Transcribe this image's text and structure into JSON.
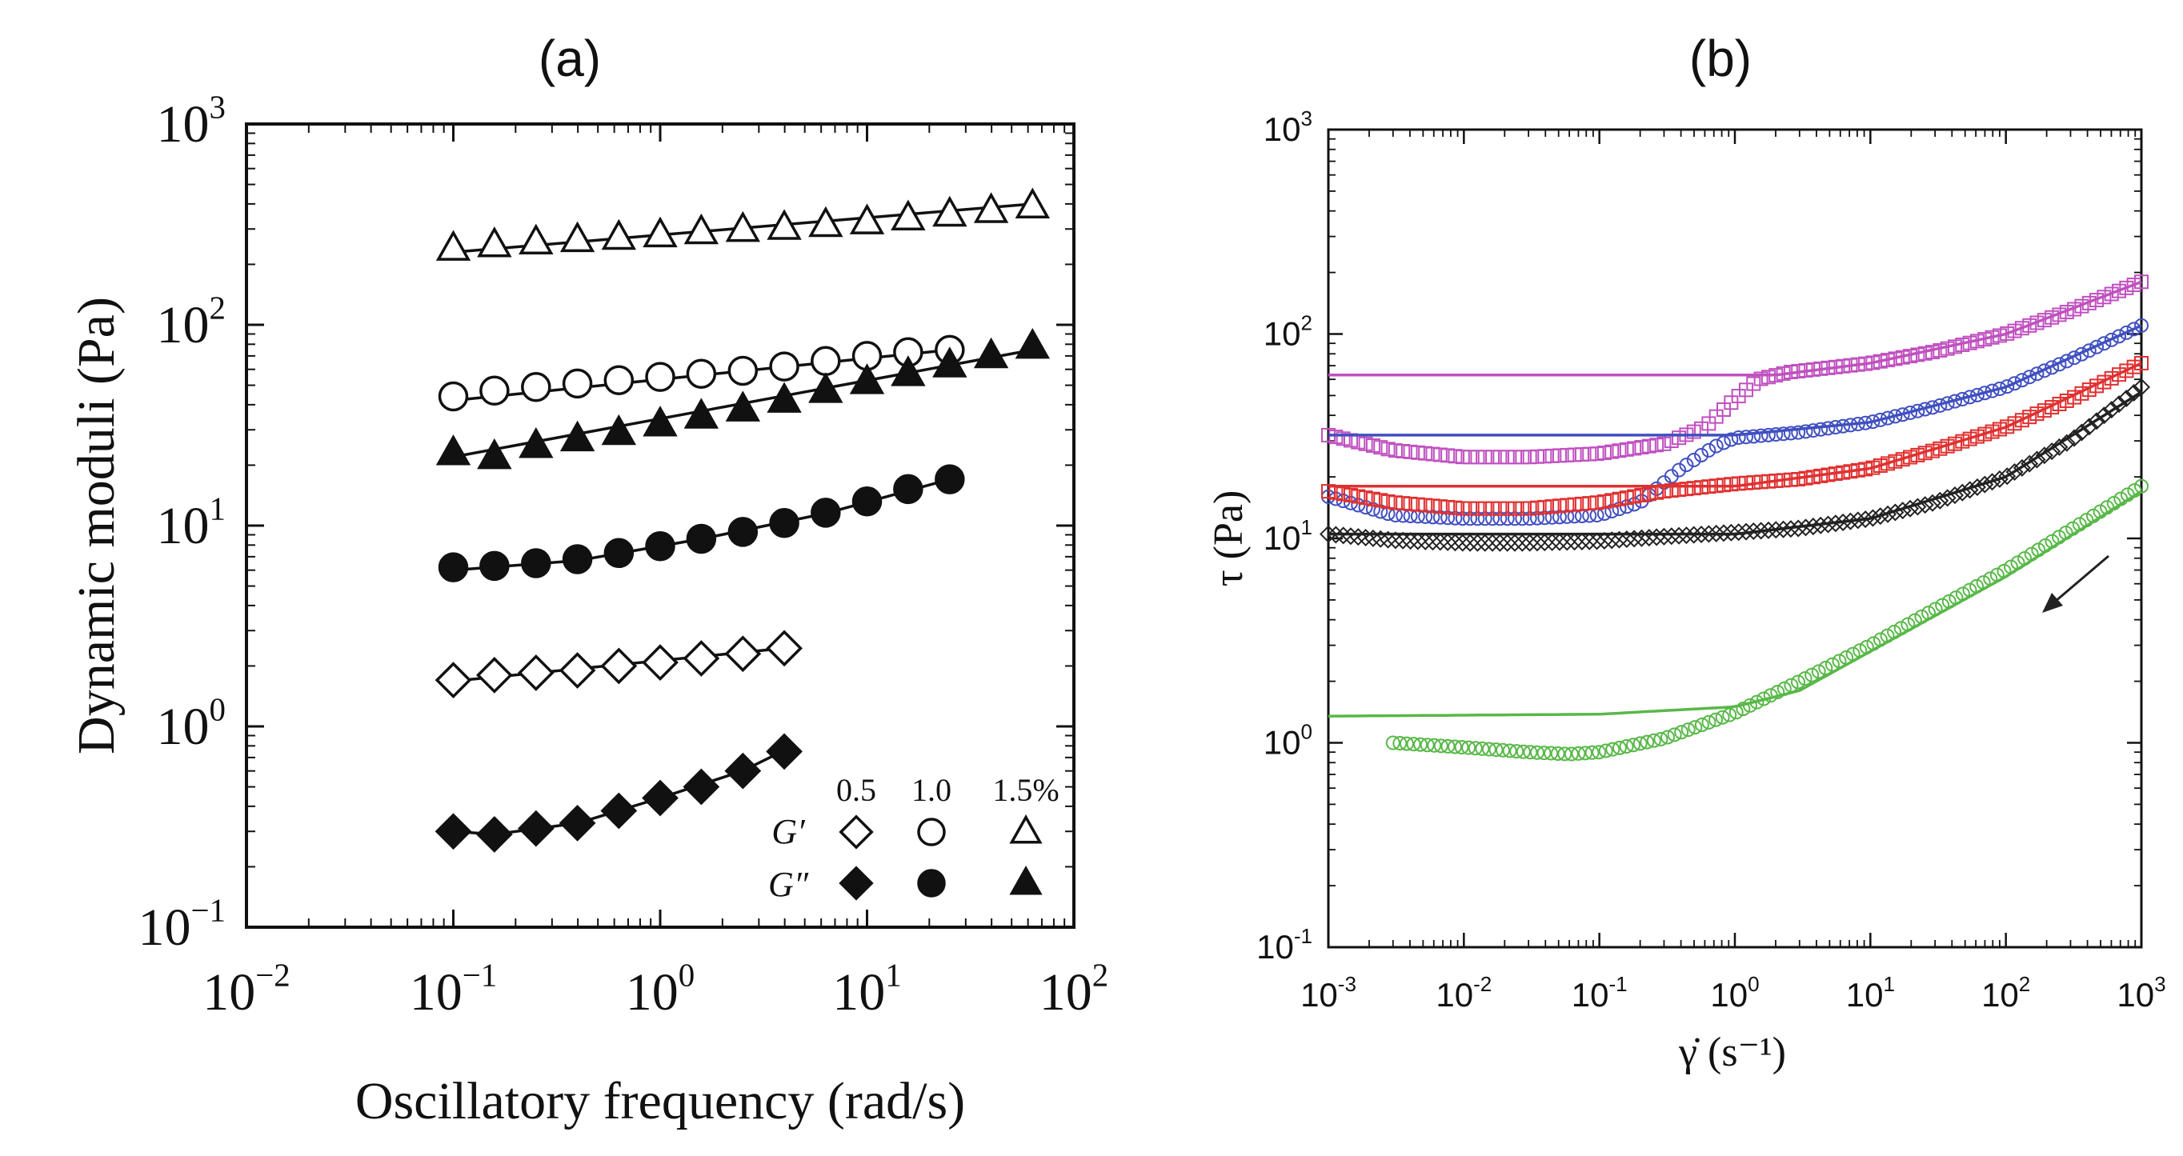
{
  "chart_data": [
    {
      "type": "scatter",
      "panel_label": "(a)",
      "title": "",
      "xlabel": "Oscillatory frequency (rad/s)",
      "ylabel": "Dynamic moduli (Pa)",
      "xscale": "log",
      "yscale": "log",
      "xlim": [
        0.01,
        100
      ],
      "ylim": [
        0.1,
        1000
      ],
      "x_ticks": [
        {
          "mantissa": "10",
          "exp": "−2"
        },
        {
          "mantissa": "10",
          "exp": "−1"
        },
        {
          "mantissa": "10",
          "exp": "0"
        },
        {
          "mantissa": "10",
          "exp": "1"
        },
        {
          "mantissa": "10",
          "exp": "2"
        }
      ],
      "y_ticks": [
        {
          "mantissa": "10",
          "exp": "−1"
        },
        {
          "mantissa": "10",
          "exp": "0"
        },
        {
          "mantissa": "10",
          "exp": "1"
        },
        {
          "mantissa": "10",
          "exp": "2"
        },
        {
          "mantissa": "10",
          "exp": "3"
        }
      ],
      "legend": {
        "position": "bottom-right",
        "header": [
          "0.5",
          "1.0",
          "1.5%"
        ],
        "rows": [
          {
            "label": "G′",
            "filled": false
          },
          {
            "label": "G″",
            "filled": true
          }
        ]
      },
      "series": [
        {
          "name": "G′ 1.5%",
          "marker": "triangle",
          "filled": false,
          "x": [
            0.1,
            0.158,
            0.251,
            0.398,
            0.631,
            1.0,
            1.58,
            2.51,
            3.98,
            6.31,
            10.0,
            15.8,
            25.1,
            39.8,
            63.1
          ],
          "y": [
            240,
            250,
            258,
            265,
            272,
            280,
            290,
            298,
            305,
            315,
            325,
            340,
            355,
            370,
            390
          ],
          "fit": [
            [
              0.1,
              230
            ],
            [
              63.1,
              400
            ]
          ]
        },
        {
          "name": "G′ 1.0%",
          "marker": "circle",
          "filled": false,
          "x": [
            0.1,
            0.158,
            0.251,
            0.398,
            0.631,
            1.0,
            1.58,
            2.51,
            3.98,
            6.31,
            10.0,
            15.8,
            25.1
          ],
          "y": [
            44,
            47,
            49,
            51,
            53,
            55,
            57,
            59,
            62,
            66,
            70,
            73,
            75
          ],
          "fit": [
            [
              0.1,
              42
            ],
            [
              25.1,
              75
            ]
          ]
        },
        {
          "name": "G″ 1.5%",
          "marker": "triangle",
          "filled": true,
          "x": [
            0.1,
            0.158,
            0.251,
            0.398,
            0.631,
            1.0,
            1.58,
            2.51,
            3.98,
            6.31,
            10.0,
            15.8,
            25.1,
            39.8,
            63.1
          ],
          "y": [
            23,
            22,
            25,
            27,
            29,
            32,
            35,
            38,
            42,
            47,
            52,
            57,
            63,
            70,
            78
          ],
          "fit": [
            [
              0.1,
              22
            ],
            [
              63.1,
              75
            ]
          ]
        },
        {
          "name": "G″ 1.0%",
          "marker": "circle",
          "filled": true,
          "x": [
            0.1,
            0.158,
            0.251,
            0.398,
            0.631,
            1.0,
            1.58,
            2.51,
            3.98,
            6.31,
            10.0,
            15.8,
            25.1
          ],
          "y": [
            6.2,
            6.3,
            6.5,
            6.8,
            7.3,
            7.9,
            8.6,
            9.3,
            10.3,
            11.6,
            13.2,
            15.2,
            17
          ],
          "fit": [
            [
              0.1,
              6.0
            ],
            [
              0.4,
              6.7
            ],
            [
              1.6,
              8.6
            ],
            [
              6.3,
              11.5
            ],
            [
              25.1,
              17
            ]
          ]
        },
        {
          "name": "G′ 0.5%",
          "marker": "diamond",
          "filled": false,
          "x": [
            0.1,
            0.158,
            0.251,
            0.398,
            0.631,
            1.0,
            1.58,
            2.51,
            3.98
          ],
          "y": [
            1.7,
            1.8,
            1.85,
            1.9,
            2.0,
            2.08,
            2.18,
            2.3,
            2.45
          ],
          "fit": [
            [
              0.1,
              1.68
            ],
            [
              3.98,
              2.45
            ]
          ]
        },
        {
          "name": "G″ 0.5%",
          "marker": "diamond",
          "filled": true,
          "x": [
            0.1,
            0.158,
            0.251,
            0.398,
            0.631,
            1.0,
            1.58,
            2.51,
            3.98
          ],
          "y": [
            0.3,
            0.29,
            0.31,
            0.33,
            0.38,
            0.44,
            0.5,
            0.6,
            0.75
          ],
          "fit": [
            [
              0.1,
              0.3
            ],
            [
              0.158,
              0.29
            ],
            [
              0.4,
              0.33
            ],
            [
              1.0,
              0.44
            ],
            [
              2.5,
              0.6
            ],
            [
              3.98,
              0.76
            ]
          ]
        }
      ]
    },
    {
      "type": "line",
      "panel_label": "(b)",
      "title": "",
      "xlabel": "γ̇ (s⁻¹)",
      "ylabel": "τ (Pa)",
      "xscale": "log",
      "yscale": "log",
      "xlim": [
        0.001,
        1000
      ],
      "ylim": [
        0.1,
        1000
      ],
      "x_ticks": [
        {
          "mantissa": "10",
          "exp": "-3"
        },
        {
          "mantissa": "10",
          "exp": "-2"
        },
        {
          "mantissa": "10",
          "exp": "-1"
        },
        {
          "mantissa": "10",
          "exp": "0"
        },
        {
          "mantissa": "10",
          "exp": "1"
        },
        {
          "mantissa": "10",
          "exp": "2"
        },
        {
          "mantissa": "10",
          "exp": "3"
        }
      ],
      "y_ticks": [
        {
          "mantissa": "10",
          "exp": "-1"
        },
        {
          "mantissa": "10",
          "exp": "0"
        },
        {
          "mantissa": "10",
          "exp": "1"
        },
        {
          "mantissa": "10",
          "exp": "2"
        },
        {
          "mantissa": "10",
          "exp": "3"
        }
      ],
      "annotation": "arrow pointing toward decreasing shear rate",
      "series": [
        {
          "name": "magenta",
          "color": "#c050c0",
          "marker": "square",
          "data": [
            [
              0.001,
              32
            ],
            [
              0.003,
              27
            ],
            [
              0.01,
              25
            ],
            [
              0.03,
              25
            ],
            [
              0.1,
              26
            ],
            [
              0.3,
              29
            ],
            [
              0.6,
              35
            ],
            [
              1.0,
              48
            ],
            [
              1.5,
              60
            ],
            [
              2.5,
              65
            ],
            [
              10,
              72
            ],
            [
              30,
              82
            ],
            [
              100,
              100
            ],
            [
              300,
              130
            ],
            [
              1000,
              180
            ]
          ],
          "fit": [
            [
              0.001,
              63
            ],
            [
              2.0,
              63
            ],
            [
              10,
              72
            ],
            [
              100,
              100
            ],
            [
              1000,
              180
            ]
          ]
        },
        {
          "name": "blue",
          "color": "#4050c0",
          "marker": "circle",
          "data": [
            [
              0.001,
              16
            ],
            [
              0.003,
              13
            ],
            [
              0.01,
              12.5
            ],
            [
              0.03,
              12.5
            ],
            [
              0.1,
              13
            ],
            [
              0.2,
              15
            ],
            [
              0.4,
              22
            ],
            [
              0.7,
              28
            ],
            [
              1.0,
              31
            ],
            [
              3,
              33
            ],
            [
              10,
              37
            ],
            [
              30,
              44
            ],
            [
              100,
              55
            ],
            [
              300,
              75
            ],
            [
              1000,
              110
            ]
          ],
          "fit": [
            [
              0.001,
              32
            ],
            [
              1.0,
              32
            ],
            [
              10,
              37
            ],
            [
              100,
              55
            ],
            [
              1000,
              110
            ]
          ]
        },
        {
          "name": "red",
          "color": "#e03030",
          "marker": "square",
          "data": [
            [
              0.001,
              17
            ],
            [
              0.003,
              15
            ],
            [
              0.01,
              14
            ],
            [
              0.03,
              14
            ],
            [
              0.1,
              15
            ],
            [
              0.3,
              17
            ],
            [
              1,
              18.5
            ],
            [
              3,
              19.5
            ],
            [
              10,
              22
            ],
            [
              30,
              27
            ],
            [
              100,
              35
            ],
            [
              300,
              48
            ],
            [
              1000,
              72
            ]
          ],
          "fit": [
            [
              0.001,
              18
            ],
            [
              1.0,
              18
            ],
            [
              10,
              22
            ],
            [
              100,
              35
            ],
            [
              1000,
              72
            ]
          ]
        },
        {
          "name": "black",
          "color": "#222222",
          "marker": "diamond",
          "data": [
            [
              0.001,
              10.5
            ],
            [
              0.003,
              9.8
            ],
            [
              0.01,
              9.5
            ],
            [
              0.03,
              9.5
            ],
            [
              0.1,
              9.7
            ],
            [
              0.3,
              10.2
            ],
            [
              1,
              10.7
            ],
            [
              3,
              11.2
            ],
            [
              10,
              12.5
            ],
            [
              30,
              15
            ],
            [
              100,
              20
            ],
            [
              300,
              30
            ],
            [
              1000,
              55
            ]
          ],
          "fit": [
            [
              0.001,
              10.5
            ],
            [
              1.0,
              10.5
            ],
            [
              10,
              12.5
            ],
            [
              100,
              20
            ],
            [
              1000,
              52
            ]
          ]
        },
        {
          "name": "green",
          "color": "#58b848",
          "marker": "circle",
          "data": [
            [
              0.003,
              1.0
            ],
            [
              0.01,
              0.95
            ],
            [
              0.03,
              0.9
            ],
            [
              0.06,
              0.88
            ],
            [
              0.1,
              0.9
            ],
            [
              0.3,
              1.05
            ],
            [
              1,
              1.4
            ],
            [
              3,
              2.0
            ],
            [
              10,
              3.0
            ],
            [
              30,
              4.5
            ],
            [
              100,
              7
            ],
            [
              300,
              11
            ],
            [
              1000,
              18
            ]
          ],
          "fit": [
            [
              0.001,
              1.35
            ],
            [
              0.1,
              1.38
            ],
            [
              1.0,
              1.5
            ],
            [
              3,
              1.8
            ],
            [
              10,
              2.8
            ],
            [
              100,
              6.5
            ],
            [
              1000,
              17
            ]
          ]
        }
      ]
    }
  ]
}
